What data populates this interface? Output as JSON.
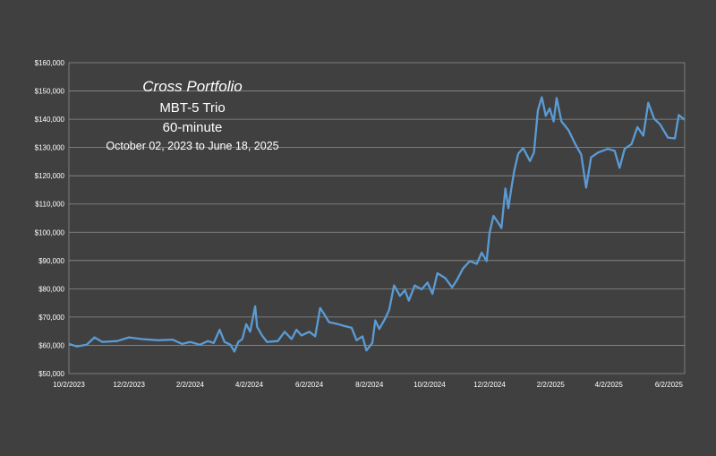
{
  "chart_data": {
    "type": "line",
    "title": "Cross Portfolio",
    "subtitle": "MBT-5 Trio",
    "interval": "60-minute",
    "date_range": "October 02, 2023 to June 18, 2025",
    "xlabel": "",
    "ylabel": "",
    "x_ticks": [
      "10/2/2023",
      "12/2/2023",
      "2/2/2024",
      "4/2/2024",
      "6/2/2024",
      "8/2/2024",
      "10/2/2024",
      "12/2/2024",
      "2/2/2025",
      "4/2/2025",
      "6/2/2025"
    ],
    "y_ticks": [
      "$50,000",
      "$60,000",
      "$70,000",
      "$80,000",
      "$90,000",
      "$100,000",
      "$110,000",
      "$120,000",
      "$130,000",
      "$140,000",
      "$150,000",
      "$160,000"
    ],
    "xlim": [
      "2023-10-02",
      "2025-06-18"
    ],
    "ylim": [
      50000,
      160000
    ],
    "grid": "horizontal",
    "series": [
      {
        "color": "#5b9bd5",
        "points": [
          [
            "2023-10-02",
            60500
          ],
          [
            "2023-10-10",
            59600
          ],
          [
            "2023-10-20",
            60200
          ],
          [
            "2023-10-28",
            62800
          ],
          [
            "2023-11-05",
            61200
          ],
          [
            "2023-11-20",
            61500
          ],
          [
            "2023-12-02",
            62800
          ],
          [
            "2023-12-15",
            62200
          ],
          [
            "2024-01-01",
            61800
          ],
          [
            "2024-01-15",
            62000
          ],
          [
            "2024-01-25",
            60500
          ],
          [
            "2024-02-02",
            61200
          ],
          [
            "2024-02-12",
            60200
          ],
          [
            "2024-02-20",
            61500
          ],
          [
            "2024-02-26",
            60800
          ],
          [
            "2024-03-03",
            65500
          ],
          [
            "2024-03-08",
            61200
          ],
          [
            "2024-03-14",
            60200
          ],
          [
            "2024-03-18",
            57800
          ],
          [
            "2024-03-22",
            61200
          ],
          [
            "2024-03-26",
            62200
          ],
          [
            "2024-03-30",
            67500
          ],
          [
            "2024-04-03",
            64800
          ],
          [
            "2024-04-08",
            73800
          ],
          [
            "2024-04-10",
            66500
          ],
          [
            "2024-04-15",
            63500
          ],
          [
            "2024-04-20",
            61200
          ],
          [
            "2024-05-01",
            61500
          ],
          [
            "2024-05-08",
            64800
          ],
          [
            "2024-05-15",
            62200
          ],
          [
            "2024-05-20",
            65500
          ],
          [
            "2024-05-25",
            63500
          ],
          [
            "2024-06-02",
            64800
          ],
          [
            "2024-06-08",
            63200
          ],
          [
            "2024-06-13",
            73200
          ],
          [
            "2024-06-18",
            70500
          ],
          [
            "2024-06-22",
            68200
          ],
          [
            "2024-07-01",
            67500
          ],
          [
            "2024-07-08",
            66800
          ],
          [
            "2024-07-15",
            66200
          ],
          [
            "2024-07-20",
            61800
          ],
          [
            "2024-07-26",
            63200
          ],
          [
            "2024-07-30",
            58200
          ],
          [
            "2024-08-05",
            60800
          ],
          [
            "2024-08-08",
            68800
          ],
          [
            "2024-08-12",
            65800
          ],
          [
            "2024-08-18",
            69500
          ],
          [
            "2024-08-22",
            72500
          ],
          [
            "2024-08-27",
            81200
          ],
          [
            "2024-09-02",
            77500
          ],
          [
            "2024-09-07",
            79500
          ],
          [
            "2024-09-11",
            75800
          ],
          [
            "2024-09-17",
            81200
          ],
          [
            "2024-09-24",
            79800
          ],
          [
            "2024-09-30",
            82200
          ],
          [
            "2024-10-05",
            78200
          ],
          [
            "2024-10-10",
            85500
          ],
          [
            "2024-10-18",
            83800
          ],
          [
            "2024-10-25",
            80500
          ],
          [
            "2024-10-30",
            83200
          ],
          [
            "2024-11-05",
            87200
          ],
          [
            "2024-11-12",
            89800
          ],
          [
            "2024-11-19",
            88800
          ],
          [
            "2024-11-24",
            92800
          ],
          [
            "2024-11-29",
            89800
          ],
          [
            "2024-12-02",
            99800
          ],
          [
            "2024-12-06",
            105800
          ],
          [
            "2024-12-10",
            103800
          ],
          [
            "2024-12-14",
            101500
          ],
          [
            "2024-12-18",
            115500
          ],
          [
            "2024-12-21",
            108500
          ],
          [
            "2024-12-24",
            115500
          ],
          [
            "2024-12-27",
            121800
          ],
          [
            "2024-12-31",
            127800
          ],
          [
            "2025-01-05",
            129800
          ],
          [
            "2025-01-12",
            125200
          ],
          [
            "2025-01-16",
            128200
          ],
          [
            "2025-01-20",
            143200
          ],
          [
            "2025-01-24",
            147800
          ],
          [
            "2025-01-28",
            141200
          ],
          [
            "2025-02-01",
            143800
          ],
          [
            "2025-02-05",
            139200
          ],
          [
            "2025-02-08",
            147500
          ],
          [
            "2025-02-13",
            139200
          ],
          [
            "2025-02-20",
            136200
          ],
          [
            "2025-02-27",
            131200
          ],
          [
            "2025-03-05",
            127500
          ],
          [
            "2025-03-10",
            115800
          ],
          [
            "2025-03-15",
            126500
          ],
          [
            "2025-03-22",
            128200
          ],
          [
            "2025-04-01",
            129500
          ],
          [
            "2025-04-08",
            128800
          ],
          [
            "2025-04-13",
            122800
          ],
          [
            "2025-04-18",
            129500
          ],
          [
            "2025-04-25",
            131200
          ],
          [
            "2025-05-01",
            137200
          ],
          [
            "2025-05-07",
            134200
          ],
          [
            "2025-05-12",
            145800
          ],
          [
            "2025-05-18",
            140200
          ],
          [
            "2025-05-24",
            138200
          ],
          [
            "2025-06-01",
            133500
          ],
          [
            "2025-06-08",
            133200
          ],
          [
            "2025-06-12",
            141500
          ],
          [
            "2025-06-18",
            139800
          ]
        ]
      }
    ]
  }
}
